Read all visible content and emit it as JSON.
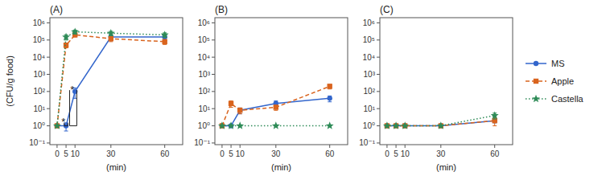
{
  "chart_data": [
    {
      "type": "line",
      "title": "(A)",
      "x": [
        0,
        5,
        10,
        30,
        60
      ],
      "xlabel": "(min)",
      "ylabel": "(CFU/g food)",
      "xlim": [
        -4,
        70
      ],
      "xticks": [
        0,
        5,
        10,
        30,
        60
      ],
      "ylim": [
        0.08,
        2000000
      ],
      "yticks": [
        {
          "value": 0.1,
          "label": "10⁻¹"
        },
        {
          "value": 1,
          "label": "10⁰"
        },
        {
          "value": 10,
          "label": "10¹"
        },
        {
          "value": 100,
          "label": "10²"
        },
        {
          "value": 1000,
          "label": "10³"
        },
        {
          "value": 10000,
          "label": "10⁴"
        },
        {
          "value": 100000,
          "label": "10⁵"
        },
        {
          "value": 1000000,
          "label": "10⁶"
        }
      ],
      "log": "y",
      "grid": false,
      "legend": "right",
      "series": [
        {
          "name": "MS",
          "marker": "circle",
          "line_style": "solid",
          "values": [
            1,
            1,
            100,
            150000,
            150000
          ],
          "errors": [
            0,
            0.5,
            60,
            60000,
            50000
          ]
        },
        {
          "name": "Apple",
          "marker": "square",
          "line_style": "dashed",
          "values": [
            1,
            50000,
            200000,
            120000,
            80000
          ],
          "errors": [
            0,
            15000,
            50000,
            40000,
            25000
          ]
        },
        {
          "name": "Castella",
          "marker": "star",
          "line_style": "dotted",
          "values": [
            1,
            150000,
            300000,
            250000,
            200000
          ],
          "errors": [
            0,
            50000,
            80000,
            70000,
            60000
          ]
        }
      ],
      "annotations": [
        {
          "text": "*",
          "x": 3.5,
          "y": 2,
          "bracket": {
            "x": [
              4,
              4,
              6,
              6
            ],
            "y": [
              1.5,
              1.0,
              1.0,
              1.5
            ]
          }
        },
        {
          "text": "*",
          "x": 8.5,
          "y": 150,
          "bracket": {
            "x": [
              7,
              7,
              11,
              11
            ],
            "y": [
              120,
              1.0,
              1.0,
              120
            ]
          }
        }
      ]
    },
    {
      "type": "line",
      "title": "(B)",
      "x": [
        0,
        5,
        10,
        30,
        60
      ],
      "xlabel": "(min)",
      "xlim": [
        -4,
        70
      ],
      "xticks": [
        0,
        5,
        10,
        30,
        60
      ],
      "ylim": [
        0.08,
        2000000
      ],
      "yticks": [
        {
          "value": 0.1,
          "label": "10⁻¹"
        },
        {
          "value": 1,
          "label": "10⁰"
        },
        {
          "value": 10,
          "label": "10¹"
        },
        {
          "value": 100,
          "label": "10²"
        },
        {
          "value": 1000,
          "label": "10³"
        },
        {
          "value": 10000,
          "label": "10⁴"
        },
        {
          "value": 100000,
          "label": "10⁵"
        },
        {
          "value": 1000000,
          "label": "10⁶"
        }
      ],
      "log": "y",
      "grid": false,
      "series": [
        {
          "name": "MS",
          "marker": "circle",
          "line_style": "solid",
          "values": [
            1,
            1,
            8,
            20,
            40
          ],
          "errors": [
            0,
            0,
            3,
            8,
            15
          ]
        },
        {
          "name": "Apple",
          "marker": "square",
          "line_style": "dashed",
          "values": [
            1,
            20,
            8,
            12,
            200
          ],
          "errors": [
            0,
            8,
            3,
            4,
            60
          ]
        },
        {
          "name": "Castella",
          "marker": "star",
          "line_style": "dotted",
          "values": [
            1,
            1,
            1,
            1,
            1
          ],
          "errors": [
            0,
            0,
            0,
            0,
            0
          ]
        }
      ]
    },
    {
      "type": "line",
      "title": "(C)",
      "x": [
        0,
        5,
        10,
        30,
        60
      ],
      "xlabel": "(min)",
      "xlim": [
        -4,
        70
      ],
      "xticks": [
        0,
        5,
        10,
        30,
        60
      ],
      "ylim": [
        0.08,
        2000000
      ],
      "yticks": [
        {
          "value": 0.1,
          "label": "10⁻¹"
        },
        {
          "value": 1,
          "label": "10⁰"
        },
        {
          "value": 10,
          "label": "10¹"
        },
        {
          "value": 100,
          "label": "10²"
        },
        {
          "value": 1000,
          "label": "10³"
        },
        {
          "value": 10000,
          "label": "10⁴"
        },
        {
          "value": 100000,
          "label": "10⁵"
        },
        {
          "value": 1000000,
          "label": "10⁶"
        }
      ],
      "log": "y",
      "grid": false,
      "series": [
        {
          "name": "MS",
          "marker": "circle",
          "line_style": "solid",
          "values": [
            1,
            1,
            1,
            1,
            2
          ],
          "errors": [
            0,
            0,
            0,
            0,
            0.5
          ]
        },
        {
          "name": "Apple",
          "marker": "square",
          "line_style": "dashed",
          "values": [
            1,
            1,
            1,
            1,
            2
          ],
          "errors": [
            0,
            0,
            0,
            0,
            1
          ]
        },
        {
          "name": "Castella",
          "marker": "star",
          "line_style": "dotted",
          "values": [
            1,
            1,
            1,
            1,
            4
          ],
          "errors": [
            0,
            0,
            0,
            0,
            1.5
          ]
        }
      ]
    }
  ]
}
